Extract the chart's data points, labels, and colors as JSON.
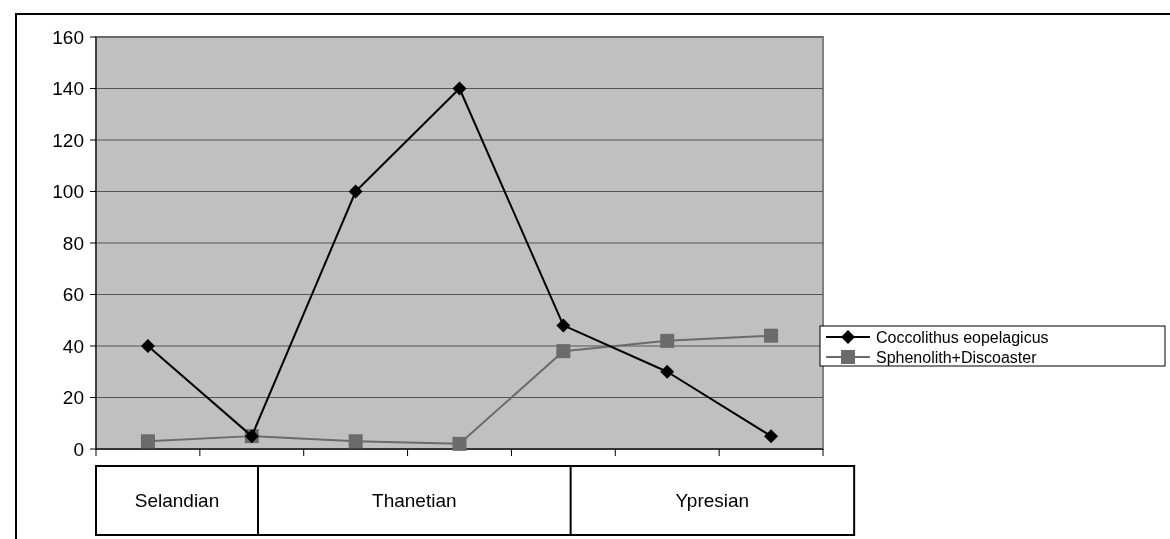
{
  "chart_data": {
    "type": "line",
    "categories": [
      null,
      null,
      null,
      null,
      null,
      null,
      null
    ],
    "series": [
      {
        "name": "Coccolithus eopelagicus",
        "color": "#000000",
        "marker": "diamond",
        "values": [
          40,
          5,
          100,
          140,
          48,
          30,
          5
        ]
      },
      {
        "name": "Sphenolith+Discoaster",
        "color": "#6b6b6b",
        "marker": "square",
        "values": [
          3,
          5,
          3,
          2,
          38,
          42,
          44
        ]
      }
    ],
    "ylim": [
      0,
      160
    ],
    "yticks": [
      0,
      20,
      40,
      60,
      80,
      100,
      120,
      140,
      160
    ],
    "grid": "y",
    "legend": "right",
    "annotations": [
      "Selandian",
      "Thanetian",
      "Ypresian"
    ]
  }
}
